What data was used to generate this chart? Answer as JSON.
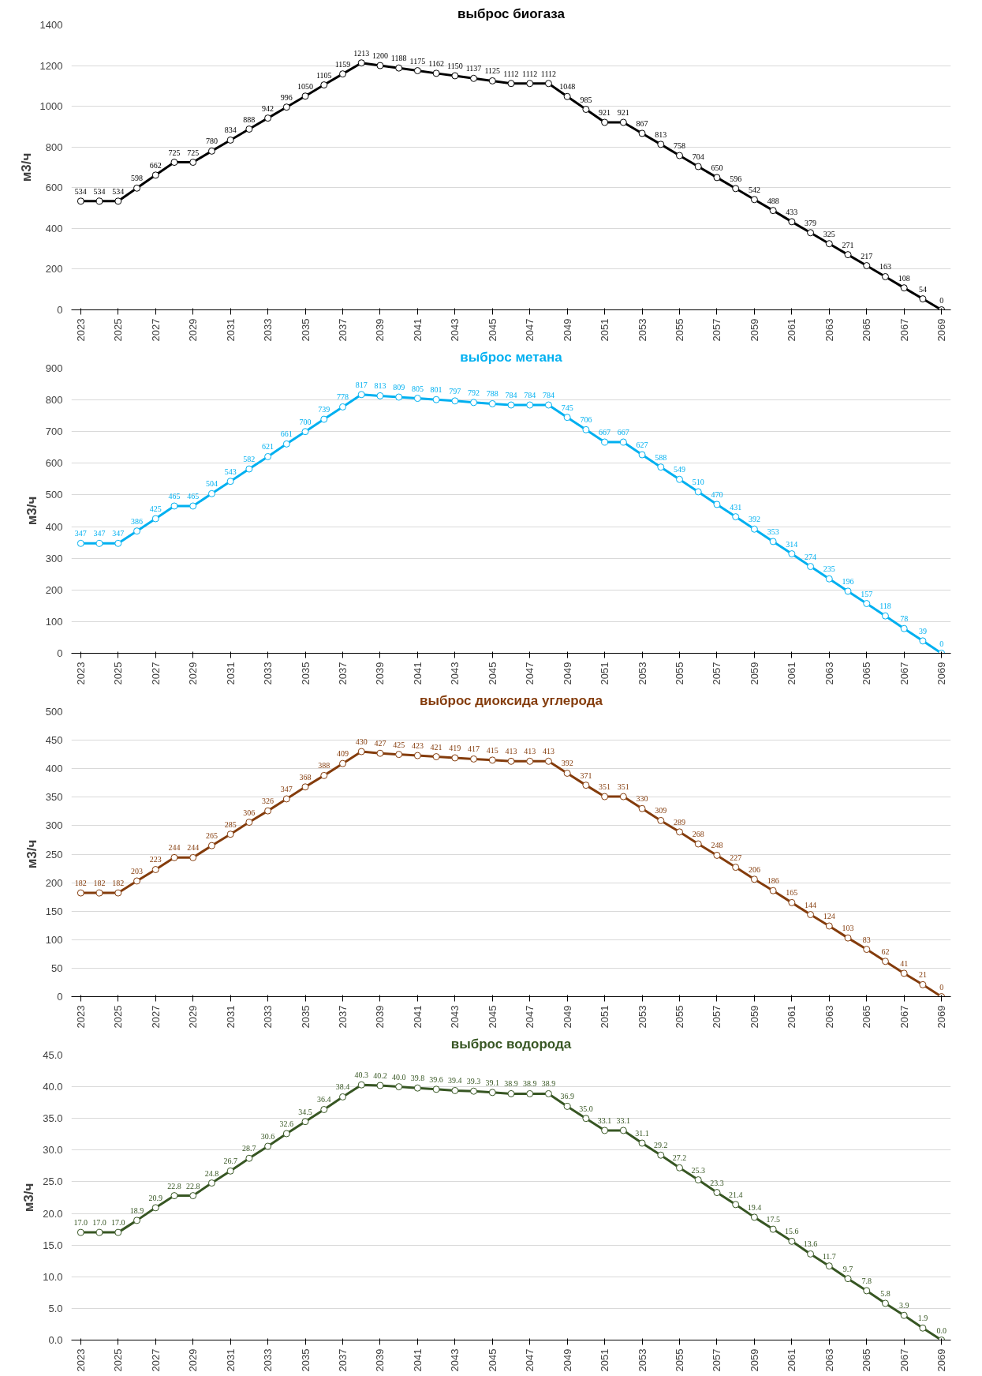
{
  "chart_data": [
    {
      "type": "line",
      "title": "выброс биогаза",
      "ylabel": "м3/ч",
      "x": [
        2023,
        2024,
        2025,
        2026,
        2027,
        2028,
        2029,
        2030,
        2031,
        2032,
        2033,
        2034,
        2035,
        2036,
        2037,
        2038,
        2039,
        2040,
        2041,
        2042,
        2043,
        2044,
        2045,
        2046,
        2047,
        2048,
        2049,
        2050,
        2051,
        2052,
        2053,
        2054,
        2055,
        2056,
        2057,
        2058,
        2059,
        2060,
        2061,
        2062,
        2063,
        2064,
        2065,
        2066,
        2067,
        2068,
        2069
      ],
      "xlim": [
        2022.5,
        2069.5
      ],
      "xticks": [
        2023,
        2025,
        2027,
        2029,
        2031,
        2033,
        2035,
        2037,
        2039,
        2041,
        2043,
        2045,
        2047,
        2049,
        2051,
        2053,
        2055,
        2057,
        2059,
        2061,
        2063,
        2065,
        2067,
        2069
      ],
      "ylim": [
        0,
        1400
      ],
      "yticks": [
        0,
        200,
        400,
        600,
        800,
        1000,
        1200,
        1400
      ],
      "grid": "y",
      "marker": "circle",
      "data_labels": true,
      "series": [
        {
          "color": "#000000",
          "values": [
            534,
            534,
            534,
            598,
            662,
            725,
            725,
            780,
            834,
            888,
            942,
            996,
            1050,
            1105,
            1159,
            1213,
            1200,
            1188,
            1175,
            1162,
            1150,
            1137,
            1125,
            1112,
            1112,
            1112,
            1048,
            985,
            921,
            921,
            867,
            813,
            758,
            704,
            650,
            596,
            542,
            488,
            433,
            379,
            325,
            271,
            217,
            163,
            108,
            54,
            0
          ]
        }
      ]
    },
    {
      "type": "line",
      "title": "выброс метана",
      "ylabel": "м3/ч",
      "x": [
        2023,
        2024,
        2025,
        2026,
        2027,
        2028,
        2029,
        2030,
        2031,
        2032,
        2033,
        2034,
        2035,
        2036,
        2037,
        2038,
        2039,
        2040,
        2041,
        2042,
        2043,
        2044,
        2045,
        2046,
        2047,
        2048,
        2049,
        2050,
        2051,
        2052,
        2053,
        2054,
        2055,
        2056,
        2057,
        2058,
        2059,
        2060,
        2061,
        2062,
        2063,
        2064,
        2065,
        2066,
        2067,
        2068,
        2069
      ],
      "xlim": [
        2022.5,
        2069.5
      ],
      "xticks": [
        2023,
        2025,
        2027,
        2029,
        2031,
        2033,
        2035,
        2037,
        2039,
        2041,
        2043,
        2045,
        2047,
        2049,
        2051,
        2053,
        2055,
        2057,
        2059,
        2061,
        2063,
        2065,
        2067,
        2069
      ],
      "ylim": [
        0,
        900
      ],
      "yticks": [
        0,
        100,
        200,
        300,
        400,
        500,
        600,
        700,
        800,
        900
      ],
      "grid": "y",
      "marker": "circle",
      "data_labels": true,
      "series": [
        {
          "color": "#00b0f0",
          "values": [
            347,
            347,
            347,
            386,
            425,
            465,
            465,
            504,
            543,
            582,
            621,
            661,
            700,
            739,
            778,
            817,
            813,
            809,
            805,
            801,
            797,
            792,
            788,
            784,
            784,
            784,
            745,
            706,
            667,
            667,
            627,
            588,
            549,
            510,
            470,
            431,
            392,
            353,
            314,
            274,
            235,
            196,
            157,
            118,
            78,
            39,
            0
          ]
        }
      ]
    },
    {
      "type": "line",
      "title": "выброс диоксида углерода",
      "ylabel": "м3/ч",
      "x": [
        2023,
        2024,
        2025,
        2026,
        2027,
        2028,
        2029,
        2030,
        2031,
        2032,
        2033,
        2034,
        2035,
        2036,
        2037,
        2038,
        2039,
        2040,
        2041,
        2042,
        2043,
        2044,
        2045,
        2046,
        2047,
        2048,
        2049,
        2050,
        2051,
        2052,
        2053,
        2054,
        2055,
        2056,
        2057,
        2058,
        2059,
        2060,
        2061,
        2062,
        2063,
        2064,
        2065,
        2066,
        2067,
        2068,
        2069
      ],
      "xlim": [
        2022.5,
        2069.5
      ],
      "xticks": [
        2023,
        2025,
        2027,
        2029,
        2031,
        2033,
        2035,
        2037,
        2039,
        2041,
        2043,
        2045,
        2047,
        2049,
        2051,
        2053,
        2055,
        2057,
        2059,
        2061,
        2063,
        2065,
        2067,
        2069
      ],
      "ylim": [
        0,
        500
      ],
      "yticks": [
        0,
        50,
        100,
        150,
        200,
        250,
        300,
        350,
        400,
        450,
        500
      ],
      "grid": "y",
      "marker": "circle",
      "data_labels": true,
      "series": [
        {
          "color": "#843c0c",
          "values": [
            182,
            182,
            182,
            203,
            223,
            244,
            244,
            265,
            285,
            306,
            326,
            347,
            368,
            388,
            409,
            430,
            427,
            425,
            423,
            421,
            419,
            417,
            415,
            413,
            413,
            413,
            392,
            371,
            351,
            351,
            330,
            309,
            289,
            268,
            248,
            227,
            206,
            186,
            165,
            144,
            124,
            103,
            83,
            62,
            41,
            21,
            0
          ]
        }
      ]
    },
    {
      "type": "line",
      "title": "выброс водорода",
      "ylabel": "м3/ч",
      "x": [
        2023,
        2024,
        2025,
        2026,
        2027,
        2028,
        2029,
        2030,
        2031,
        2032,
        2033,
        2034,
        2035,
        2036,
        2037,
        2038,
        2039,
        2040,
        2041,
        2042,
        2043,
        2044,
        2045,
        2046,
        2047,
        2048,
        2049,
        2050,
        2051,
        2052,
        2053,
        2054,
        2055,
        2056,
        2057,
        2058,
        2059,
        2060,
        2061,
        2062,
        2063,
        2064,
        2065,
        2066,
        2067,
        2068,
        2069
      ],
      "xlim": [
        2022.5,
        2069.5
      ],
      "xticks": [
        2023,
        2025,
        2027,
        2029,
        2031,
        2033,
        2035,
        2037,
        2039,
        2041,
        2043,
        2045,
        2047,
        2049,
        2051,
        2053,
        2055,
        2057,
        2059,
        2061,
        2063,
        2065,
        2067,
        2069
      ],
      "ylim": [
        0,
        45
      ],
      "yticks": [
        {
          "value": 0,
          "label": "0.0"
        },
        {
          "value": 5,
          "label": "5.0"
        },
        {
          "value": 10,
          "label": "10.0"
        },
        {
          "value": 15,
          "label": "15.0"
        },
        {
          "value": 20,
          "label": "20.0"
        },
        {
          "value": 25,
          "label": "25.0"
        },
        {
          "value": 30,
          "label": "30.0"
        },
        {
          "value": 35,
          "label": "35.0"
        },
        {
          "value": 40,
          "label": "40.0"
        },
        {
          "value": 45,
          "label": "45.0"
        }
      ],
      "grid": "y",
      "marker": "circle",
      "series": [
        {
          "color": "#375623",
          "values": [
            17.0,
            17.0,
            17.0,
            18.9,
            20.9,
            22.8,
            22.8,
            24.8,
            26.7,
            28.7,
            30.6,
            32.6,
            34.5,
            36.4,
            38.4,
            40.3,
            40.2,
            40.0,
            39.8,
            39.6,
            39.4,
            39.3,
            39.1,
            38.9,
            38.9,
            38.9,
            36.9,
            35.0,
            33.1,
            33.1,
            31.1,
            29.2,
            27.2,
            25.3,
            23.3,
            21.4,
            19.4,
            17.5,
            15.6,
            13.6,
            11.7,
            9.7,
            7.8,
            5.8,
            3.9,
            1.9,
            0.0
          ],
          "value_labels": [
            "17.0",
            "17.0",
            "17.0",
            "18.9",
            "20.9",
            "22.8",
            "22.8",
            "24.8",
            "26.7",
            "28.7",
            "30.6",
            "32.6",
            "34.5",
            "36.4",
            "38.4",
            "40.3",
            "40.2",
            "40.0",
            "39.8",
            "39.6",
            "39.4",
            "39.3",
            "39.1",
            "38.9",
            "38.9",
            "38.9",
            "36.9",
            "35.0",
            "33.1",
            "33.1",
            "31.1",
            "29.2",
            "27.2",
            "25.3",
            "23.3",
            "21.4",
            "19.4",
            "17.5",
            "15.6",
            "13.6",
            "11.7",
            "9.7",
            "7.8",
            "5.8",
            "3.9",
            "1.9",
            "0.0"
          ]
        }
      ]
    }
  ]
}
